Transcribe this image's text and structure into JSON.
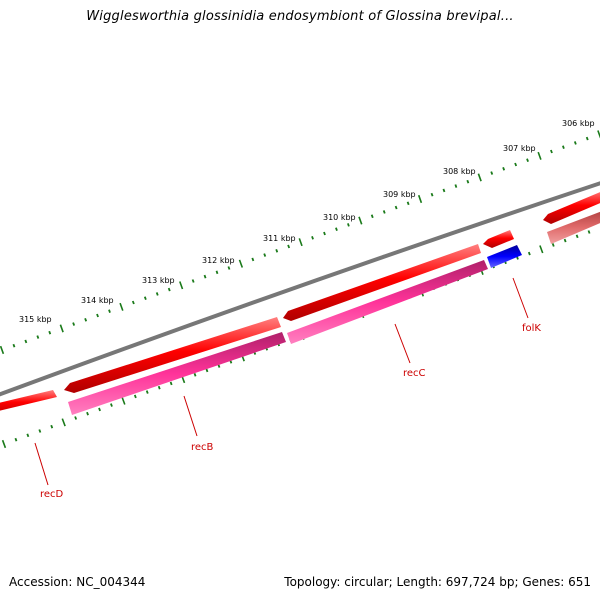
{
  "title": "Wigglesworthia glossinidia endosymbiont of Glossina brevipal...",
  "footer": {
    "accession": "Accession: NC_004344",
    "summary": "Topology: circular; Length: 697,724 bp; Genes: 651"
  },
  "colors": {
    "backbone": "#777777",
    "forward_cds": "#ff0000",
    "reverse_cds": "#ff3399",
    "highlight_cds": "#0000ff",
    "faded_cds": "#e07070",
    "ticks": "#1a7a1a",
    "label": "#cc0000"
  },
  "kbp_ticks": [
    "306 kbp",
    "307 kbp",
    "308 kbp",
    "309 kbp",
    "310 kbp",
    "311 kbp",
    "312 kbp",
    "313 kbp",
    "314 kbp",
    "315 kbp"
  ],
  "genes": [
    {
      "name": "recD",
      "track": "forward"
    },
    {
      "name": "recB",
      "track": "reverse"
    },
    {
      "name": "recC",
      "track": "reverse"
    },
    {
      "name": "folK",
      "track": "highlight"
    }
  ]
}
